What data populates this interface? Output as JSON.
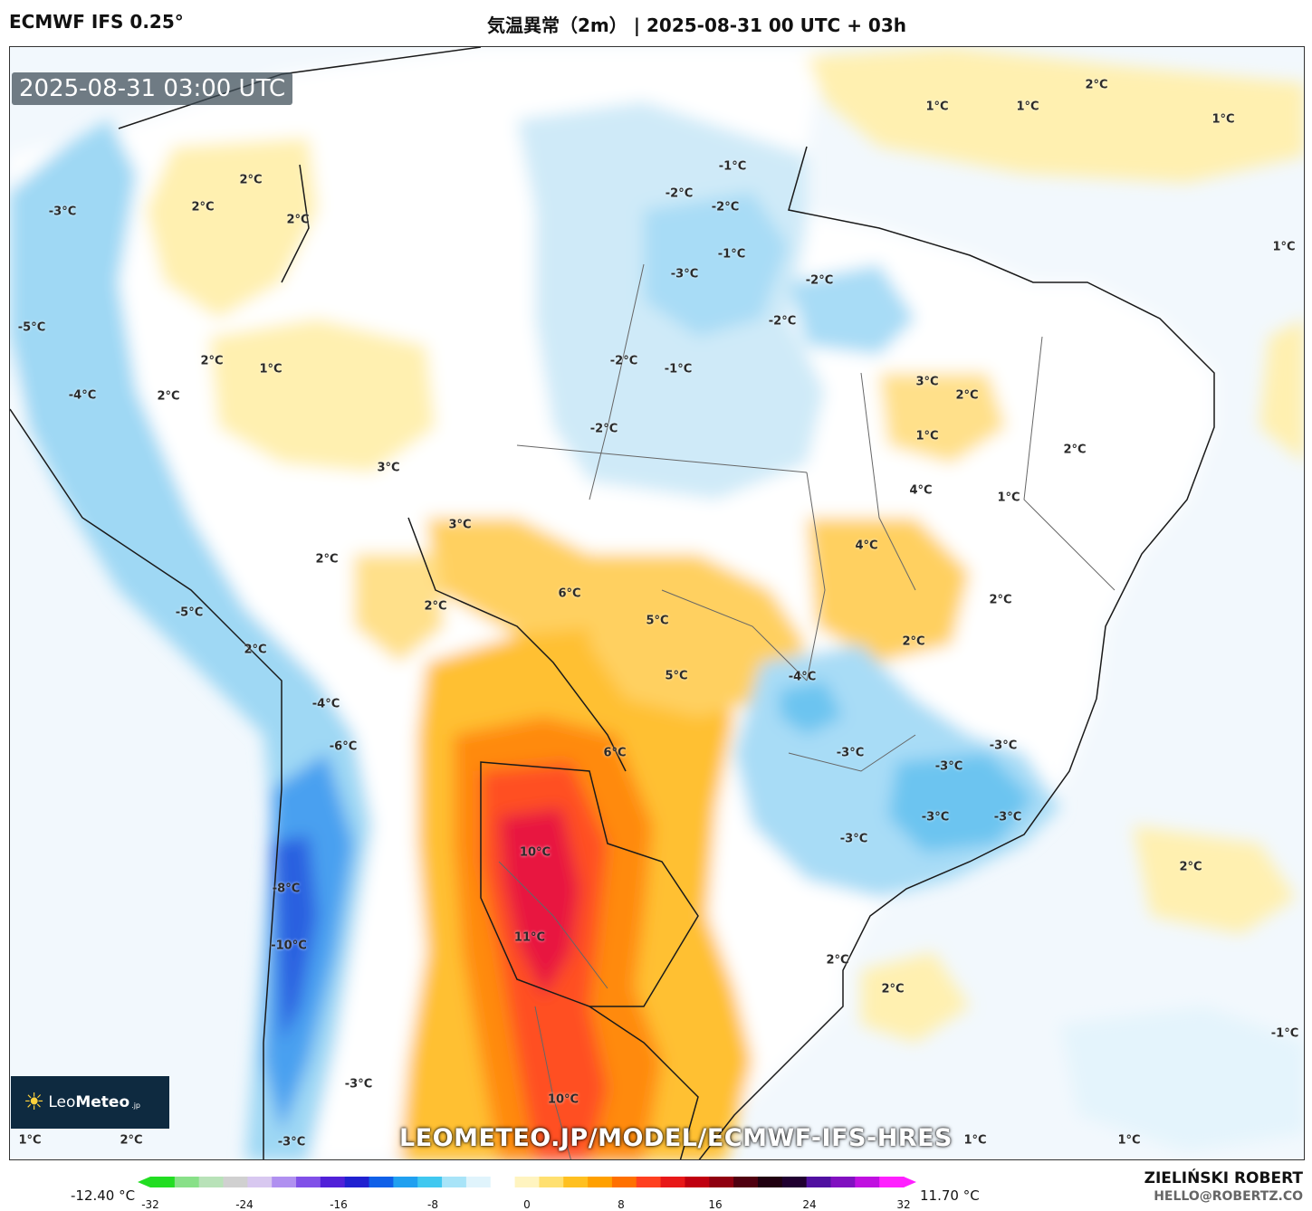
{
  "header": {
    "model": "ECMWF IFS 0.25°",
    "title": "気温異常（2m） | 2025-08-31 00 UTC + 03h"
  },
  "map": {
    "timestamp": "2025-08-31 03:00 UTC",
    "labels": [
      {
        "text": "2°C"
      },
      {
        "text": "2°C"
      },
      {
        "text": "2°C"
      },
      {
        "text": "-3°C"
      },
      {
        "text": "-5°C"
      },
      {
        "text": "2°C"
      },
      {
        "text": "1°C"
      },
      {
        "text": "2°C"
      },
      {
        "text": "-4°C"
      },
      {
        "text": "3°C"
      },
      {
        "text": "3°C"
      },
      {
        "text": "2°C"
      },
      {
        "text": "2°C"
      },
      {
        "text": "-5°C"
      },
      {
        "text": "2°C"
      },
      {
        "text": "-4°C"
      },
      {
        "text": "-6°C"
      },
      {
        "text": "6°C"
      },
      {
        "text": "5°C"
      },
      {
        "text": "5°C"
      },
      {
        "text": "6°C"
      },
      {
        "text": "10°C"
      },
      {
        "text": "11°C"
      },
      {
        "text": "10°C"
      },
      {
        "text": "-8°C"
      },
      {
        "text": "-10°C"
      },
      {
        "text": "-3°C"
      },
      {
        "text": "-1°C"
      },
      {
        "text": "-2°C"
      },
      {
        "text": "-2°C"
      },
      {
        "text": "-1°C"
      },
      {
        "text": "-3°C"
      },
      {
        "text": "-2°C"
      },
      {
        "text": "-2°C"
      },
      {
        "text": "-2°C"
      },
      {
        "text": "-1°C"
      },
      {
        "text": "-2°C"
      },
      {
        "text": "1°C"
      },
      {
        "text": "1°C"
      },
      {
        "text": "2°C"
      },
      {
        "text": "1°C"
      },
      {
        "text": "1°C"
      },
      {
        "text": "3°C"
      },
      {
        "text": "2°C"
      },
      {
        "text": "1°C"
      },
      {
        "text": "2°C"
      },
      {
        "text": "1°C"
      },
      {
        "text": "4°C"
      },
      {
        "text": "4°C"
      },
      {
        "text": "2°C"
      },
      {
        "text": "2°C"
      },
      {
        "text": "-4°C"
      },
      {
        "text": "-3°C"
      },
      {
        "text": "-3°C"
      },
      {
        "text": "-3°C"
      },
      {
        "text": "-3°C"
      },
      {
        "text": "-3°C"
      },
      {
        "text": "-3°C"
      },
      {
        "text": "2°C"
      },
      {
        "text": "2°C"
      },
      {
        "text": "2°C"
      },
      {
        "text": "-1°C"
      },
      {
        "text": "1°C"
      },
      {
        "text": "2°C"
      },
      {
        "text": "-3°C"
      },
      {
        "text": "1°C"
      },
      {
        "text": "1°C"
      }
    ],
    "url": "LEOMETEO.JP/MODEL/ECMWF-IFS-HRES",
    "logo": {
      "brand_light": "Leo",
      "brand_bold": "Meteo",
      "brand_suffix": ".jp"
    }
  },
  "colorbar": {
    "min_label": "-12.40 °C",
    "max_label": "11.70 °C",
    "ticks": [
      "-32",
      "-24",
      "-16",
      "-8",
      "0",
      "8",
      "16",
      "24",
      "32"
    ],
    "tick_values": [
      -32,
      -24,
      -16,
      -8,
      0,
      8,
      16,
      24,
      32
    ],
    "colors": [
      "#22dd22",
      "#88e088",
      "#b8e2b8",
      "#d0d0d0",
      "#d8c8f0",
      "#b090f0",
      "#8050e8",
      "#5020d8",
      "#2020d0",
      "#1060e8",
      "#20a0f0",
      "#40c8f0",
      "#a8e4f8",
      "#e0f4fc",
      "#ffffff",
      "#fff4c0",
      "#ffe070",
      "#ffc020",
      "#ffa000",
      "#ff7000",
      "#ff4020",
      "#e81818",
      "#c00010",
      "#900010",
      "#500010",
      "#200010",
      "#200030",
      "#5010a0",
      "#8010c0",
      "#c010e0",
      "#ff20ff"
    ]
  },
  "credits": {
    "author": "ZIELIŃSKI ROBERT",
    "email": "HELLO@ROBERTZ.CO"
  }
}
